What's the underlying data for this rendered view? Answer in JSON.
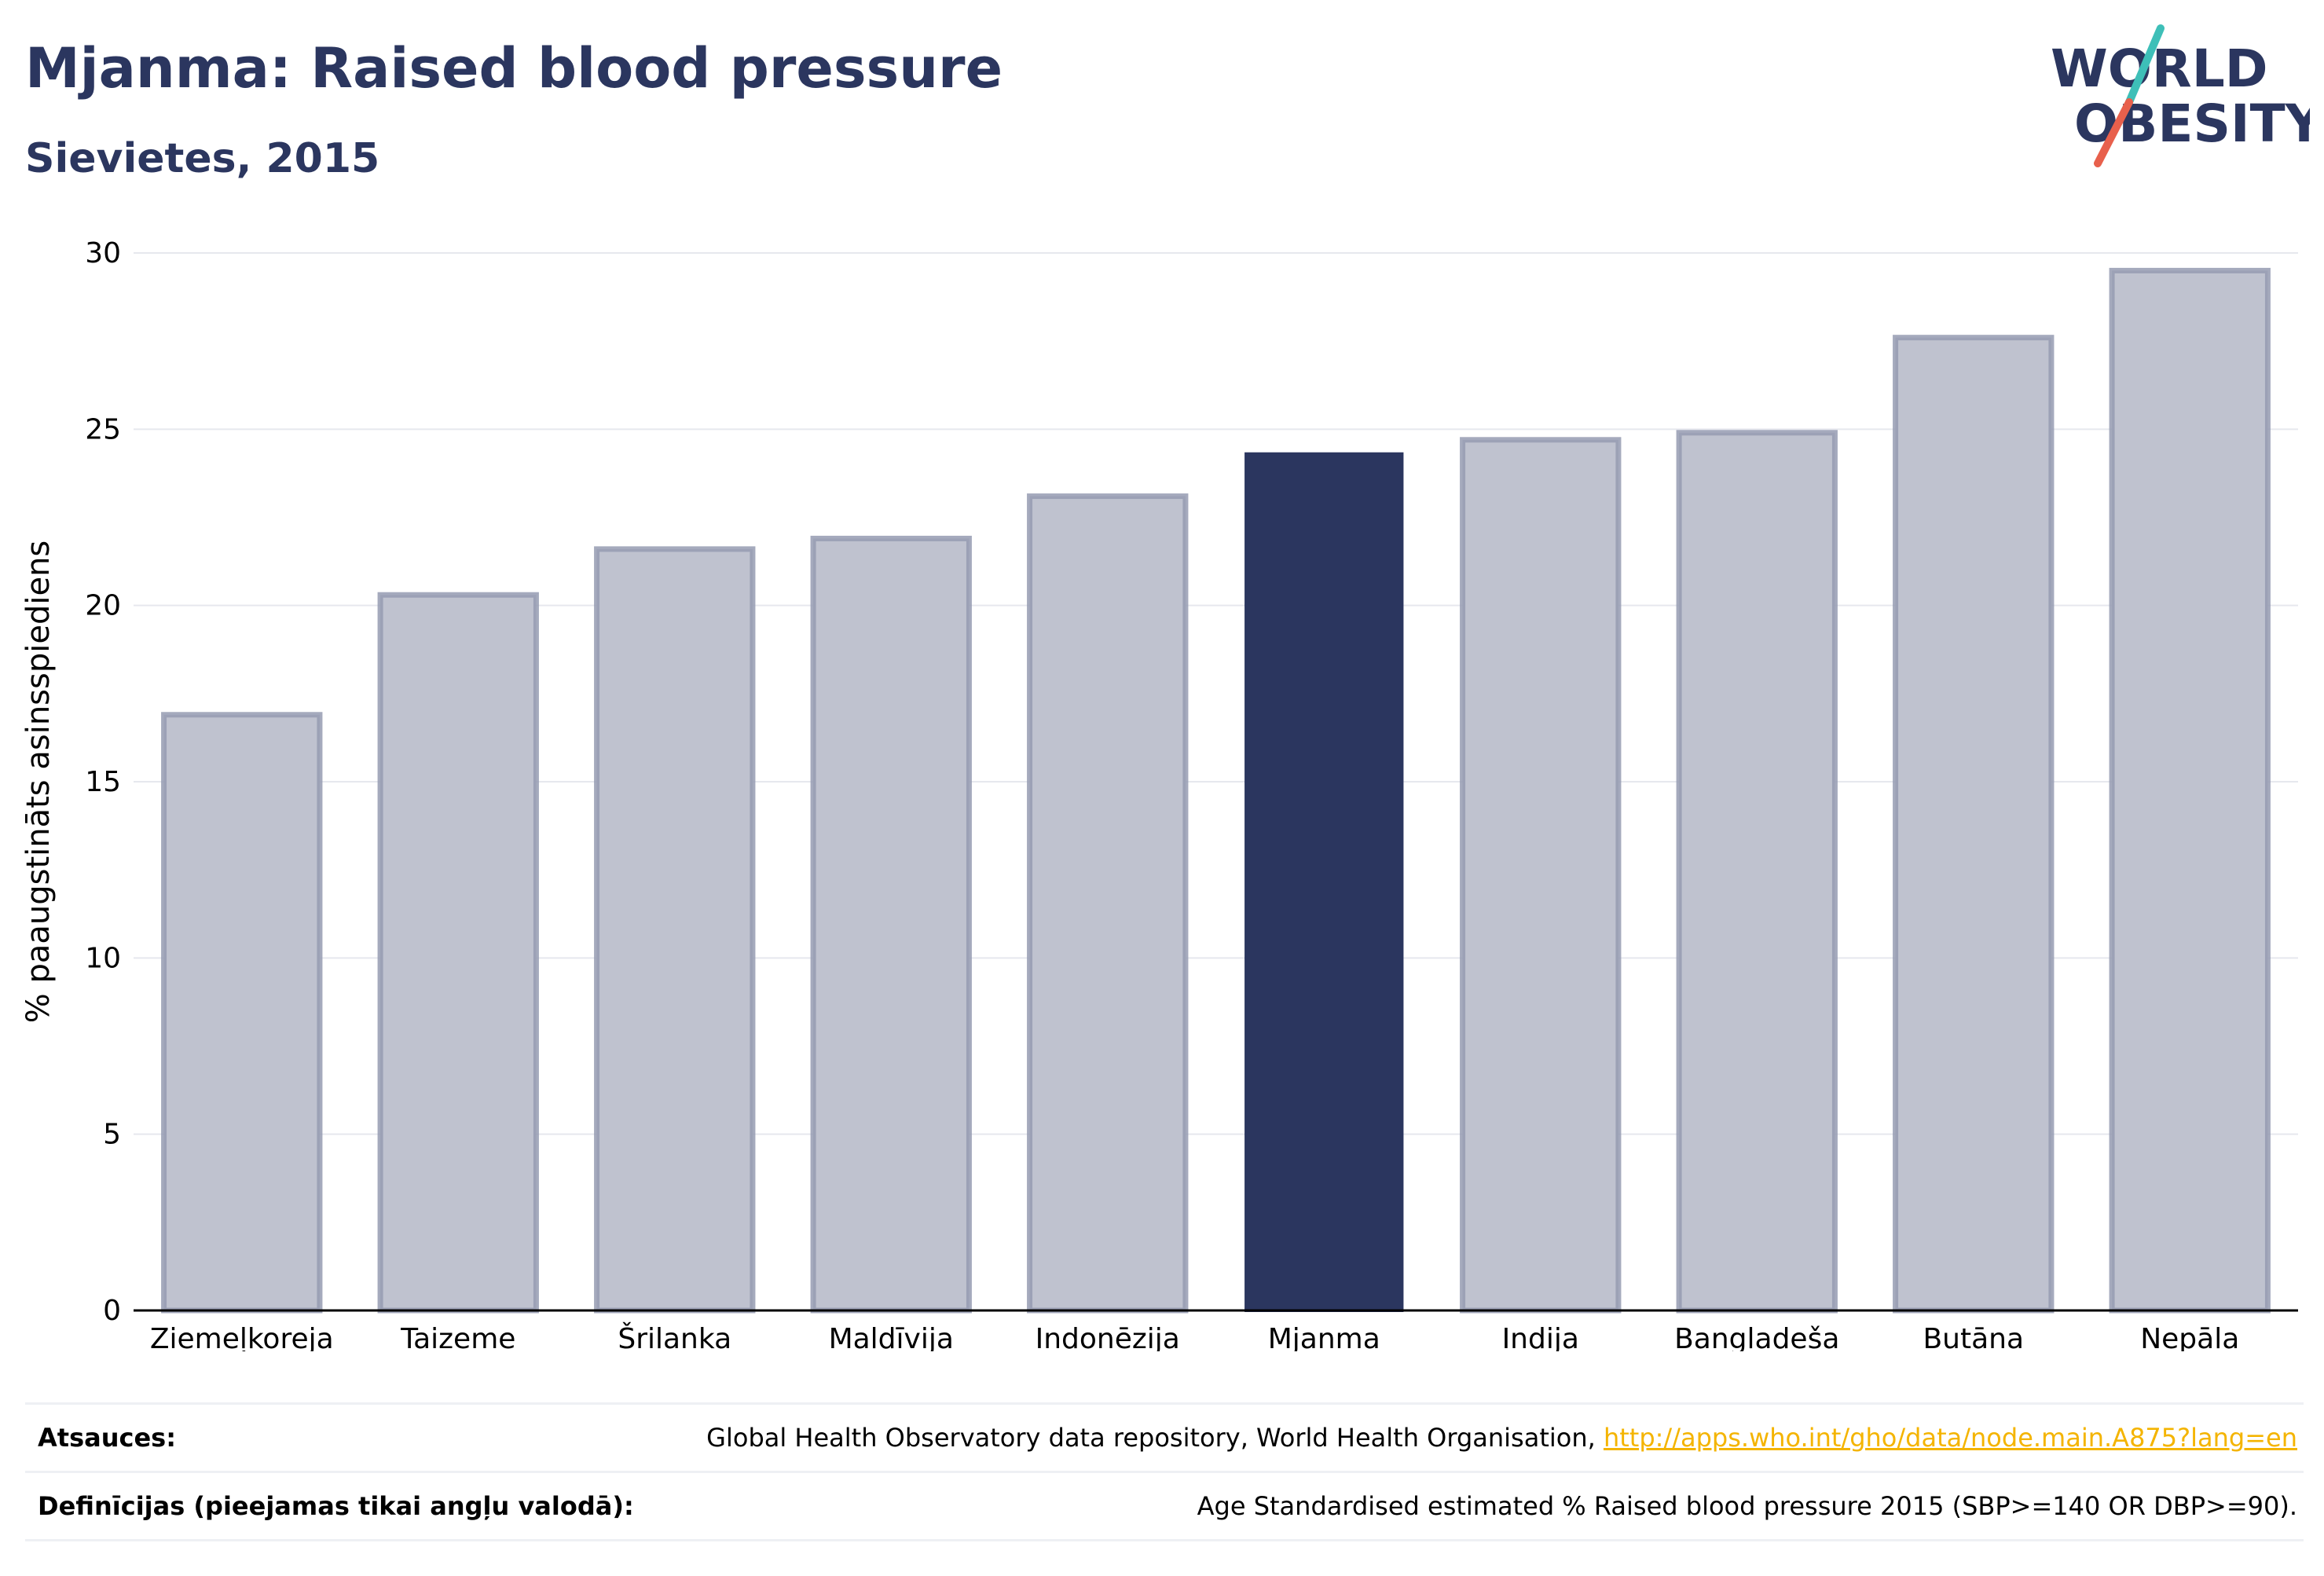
{
  "header": {
    "title": "Mjanma: Raised blood pressure",
    "subtitle": "Sievietes, 2015"
  },
  "logo": {
    "line1": "WORLD",
    "line2": "OBESITY",
    "text_color": "#2b365f",
    "slash_color_top": "#3ebfb8",
    "slash_color_bottom": "#e8604c"
  },
  "chart_data": {
    "type": "bar",
    "categories": [
      "Ziemeļkoreja",
      "Taizeme",
      "Šrilanka",
      "Maldīvija",
      "Indonēzija",
      "Mjanma",
      "Indija",
      "Bangladeša",
      "Butāna",
      "Nepāla"
    ],
    "values": [
      16.9,
      20.3,
      21.6,
      21.9,
      23.1,
      24.3,
      24.7,
      24.9,
      27.6,
      29.5
    ],
    "highlight": "Mjanma",
    "ylabel": "% paaugstināts asinsspiediens",
    "xlabel": "",
    "ylim": [
      0,
      30
    ],
    "yticks": [
      0,
      5,
      10,
      15,
      20,
      25,
      30
    ],
    "grid": true,
    "colors": {
      "bar": "#2b365f",
      "bar_muted_fill": "#bfc2cf",
      "bar_muted_stroke": "#959bb2",
      "grid": "#e6e8ee",
      "axis": "#000000"
    }
  },
  "footer": {
    "sources_label": "Atsauces:",
    "sources_text": "Global Health Observatory data repository, World Health Organisation, ",
    "sources_link": "http://apps.who.int/gho/data/node.main.A875?lang=en",
    "definitions_label": "Definīcijas (pieejamas tikai angļu valodā):",
    "definitions_text": "Age Standardised estimated % Raised blood pressure 2015 (SBP>=140 OR DBP>=90)."
  }
}
